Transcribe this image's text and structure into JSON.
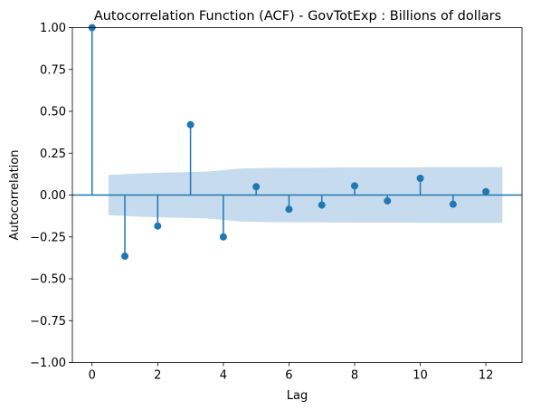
{
  "chart_data": {
    "type": "stem",
    "title": "Autocorrelation Function (ACF) - GovTotExp : Billions of dollars",
    "xlabel": "Lag",
    "ylabel": "Autocorrelation",
    "xlim": [
      -0.6,
      13.1
    ],
    "ylim": [
      -1.0,
      1.0
    ],
    "x_ticks": [
      0,
      2,
      4,
      6,
      8,
      10,
      12
    ],
    "y_ticks": [
      -1.0,
      -0.75,
      -0.5,
      -0.25,
      0.0,
      0.25,
      0.5,
      0.75,
      1.0
    ],
    "y_tick_labels": [
      "−1.00",
      "−0.75",
      "−0.50",
      "−0.25",
      "0.00",
      "0.25",
      "0.50",
      "0.75",
      "1.00"
    ],
    "x_tick_labels": [
      "0",
      "2",
      "4",
      "6",
      "8",
      "10",
      "12"
    ],
    "lags": [
      0,
      1,
      2,
      3,
      4,
      5,
      6,
      7,
      8,
      9,
      10,
      11,
      12
    ],
    "values": [
      1.0,
      -0.365,
      -0.185,
      0.42,
      -0.25,
      0.05,
      -0.085,
      -0.06,
      0.055,
      -0.035,
      0.1,
      -0.055,
      0.02
    ],
    "confidence_band": {
      "x": [
        0.5,
        1.5,
        2.5,
        3.5,
        4.5,
        5.5,
        6.5,
        7.5,
        8.5,
        9.5,
        10.5,
        11.5,
        12.5
      ],
      "upper": [
        0.12,
        0.13,
        0.135,
        0.14,
        0.158,
        0.162,
        0.163,
        0.164,
        0.165,
        0.165,
        0.166,
        0.167,
        0.167
      ],
      "lower": [
        -0.12,
        -0.13,
        -0.135,
        -0.14,
        -0.158,
        -0.162,
        -0.163,
        -0.164,
        -0.165,
        -0.165,
        -0.166,
        -0.167,
        -0.167
      ]
    },
    "grid": false,
    "colors": {
      "stem": "#1f77b4",
      "band": "#c6dbed",
      "zero_line": "#1f77b4",
      "axes": "#000000"
    }
  }
}
